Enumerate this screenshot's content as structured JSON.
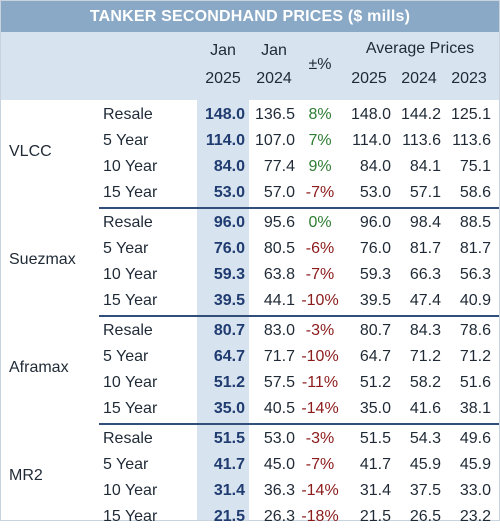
{
  "title": "TANKER SECONDHAND PRICES ($ mills)",
  "headers": {
    "jan": "Jan",
    "year2025": "2025",
    "year2024": "2024",
    "pct": "±%",
    "avg_title": "Average Prices",
    "avg2025": "2025",
    "avg2024": "2024",
    "avg2023": "2023"
  },
  "groups": [
    {
      "name": "VLCC",
      "rows": [
        {
          "label": "Resale",
          "jan25": "148.0",
          "jan24": "136.5",
          "pct": "8%",
          "sign": "pos",
          "avg25": "148.0",
          "avg24": "144.2",
          "avg23": "125.1"
        },
        {
          "label": "5 Year",
          "jan25": "114.0",
          "jan24": "107.0",
          "pct": "7%",
          "sign": "pos",
          "avg25": "114.0",
          "avg24": "113.6",
          "avg23": "113.6"
        },
        {
          "label": "10 Year",
          "jan25": "84.0",
          "jan24": "77.4",
          "pct": "9%",
          "sign": "pos",
          "avg25": "84.0",
          "avg24": "84.1",
          "avg23": "75.1"
        },
        {
          "label": "15 Year",
          "jan25": "53.0",
          "jan24": "57.0",
          "pct": "-7%",
          "sign": "neg",
          "avg25": "53.0",
          "avg24": "57.1",
          "avg23": "58.6"
        }
      ]
    },
    {
      "name": "Suezmax",
      "rows": [
        {
          "label": "Resale",
          "jan25": "96.0",
          "jan24": "95.6",
          "pct": "0%",
          "sign": "pos",
          "avg25": "96.0",
          "avg24": "98.4",
          "avg23": "88.5"
        },
        {
          "label": "5 Year",
          "jan25": "76.0",
          "jan24": "80.5",
          "pct": "-6%",
          "sign": "neg",
          "avg25": "76.0",
          "avg24": "81.7",
          "avg23": "81.7"
        },
        {
          "label": "10 Year",
          "jan25": "59.3",
          "jan24": "63.8",
          "pct": "-7%",
          "sign": "neg",
          "avg25": "59.3",
          "avg24": "66.3",
          "avg23": "56.3"
        },
        {
          "label": "15 Year",
          "jan25": "39.5",
          "jan24": "44.1",
          "pct": "-10%",
          "sign": "neg",
          "avg25": "39.5",
          "avg24": "47.4",
          "avg23": "40.9"
        }
      ]
    },
    {
      "name": "Aframax",
      "rows": [
        {
          "label": "Resale",
          "jan25": "80.7",
          "jan24": "83.0",
          "pct": "-3%",
          "sign": "neg",
          "avg25": "80.7",
          "avg24": "84.3",
          "avg23": "78.6"
        },
        {
          "label": "5 Year",
          "jan25": "64.7",
          "jan24": "71.7",
          "pct": "-10%",
          "sign": "neg",
          "avg25": "64.7",
          "avg24": "71.2",
          "avg23": "71.2"
        },
        {
          "label": "10 Year",
          "jan25": "51.2",
          "jan24": "57.5",
          "pct": "-11%",
          "sign": "neg",
          "avg25": "51.2",
          "avg24": "58.2",
          "avg23": "51.6"
        },
        {
          "label": "15 Year",
          "jan25": "35.0",
          "jan24": "40.5",
          "pct": "-14%",
          "sign": "neg",
          "avg25": "35.0",
          "avg24": "41.6",
          "avg23": "38.1"
        }
      ]
    },
    {
      "name": "MR2",
      "rows": [
        {
          "label": "Resale",
          "jan25": "51.5",
          "jan24": "53.0",
          "pct": "-3%",
          "sign": "neg",
          "avg25": "51.5",
          "avg24": "54.3",
          "avg23": "49.6"
        },
        {
          "label": "5 Year",
          "jan25": "41.7",
          "jan24": "45.0",
          "pct": "-7%",
          "sign": "neg",
          "avg25": "41.7",
          "avg24": "45.9",
          "avg23": "45.9"
        },
        {
          "label": "10 Year",
          "jan25": "31.4",
          "jan24": "36.3",
          "pct": "-14%",
          "sign": "neg",
          "avg25": "31.4",
          "avg24": "37.5",
          "avg23": "33.0"
        },
        {
          "label": "15 Year",
          "jan25": "21.5",
          "jan24": "26.3",
          "pct": "-18%",
          "sign": "neg",
          "avg25": "21.5",
          "avg24": "26.5",
          "avg23": "23.2"
        }
      ]
    }
  ]
}
